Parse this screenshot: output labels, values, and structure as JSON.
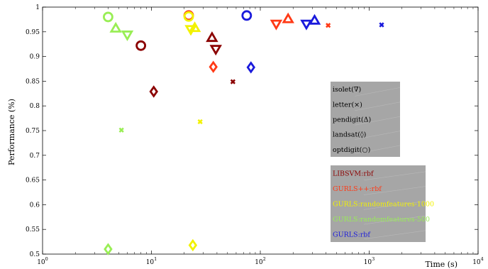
{
  "chart_data": {
    "type": "scatter",
    "xlabel": "Time (s)",
    "ylabel": "Performance (%)",
    "xscale": "log",
    "xlim": [
      1,
      10000
    ],
    "ylim": [
      0.5,
      1
    ],
    "x_ticks": [
      {
        "value": 1,
        "base": "10",
        "exp": "0"
      },
      {
        "value": 10,
        "base": "10",
        "exp": "1"
      },
      {
        "value": 100,
        "base": "10",
        "exp": "2"
      },
      {
        "value": 1000,
        "base": "10",
        "exp": "3"
      },
      {
        "value": 10000,
        "base": "10",
        "exp": "4"
      }
    ],
    "y_ticks": [
      {
        "value": 0.5,
        "label": "0.5"
      },
      {
        "value": 0.55,
        "label": "0.55"
      },
      {
        "value": 0.6,
        "label": "0.6"
      },
      {
        "value": 0.65,
        "label": "0.65"
      },
      {
        "value": 0.7,
        "label": "0.7"
      },
      {
        "value": 0.75,
        "label": "0.75"
      },
      {
        "value": 0.8,
        "label": "0.8"
      },
      {
        "value": 0.85,
        "label": "0.85"
      },
      {
        "value": 0.9,
        "label": "0.9"
      },
      {
        "value": 0.95,
        "label": "0.95"
      },
      {
        "value": 1,
        "label": "1"
      }
    ],
    "grid": false,
    "legend_markers": {
      "placement": "right",
      "entries": [
        {
          "label": "isolet(∇)",
          "marker": "triangle-down"
        },
        {
          "label": "letter(×)",
          "marker": "x"
        },
        {
          "label": "pendigit(Δ)",
          "marker": "triangle-up"
        },
        {
          "label": "landsat(◊)",
          "marker": "diamond"
        },
        {
          "label": "optdigit(○)",
          "marker": "circle"
        }
      ]
    },
    "legend_methods": {
      "placement": "right",
      "entries": [
        {
          "label": "LIBSVM:rbf",
          "color": "#8b0000"
        },
        {
          "label": "GURLS++:rbf",
          "color": "#ff3a16"
        },
        {
          "label": "GURLS:randomfeatures-1000",
          "color": "#f2f200"
        },
        {
          "label": "GURLS:randomfeatures-500",
          "color": "#99ee55"
        },
        {
          "label": "GURLS:rbf",
          "color": "#1a1adc"
        }
      ]
    },
    "series": [
      {
        "method": "LIBSVM:rbf",
        "color": "#8b0000",
        "points": [
          {
            "dataset": "isolet",
            "marker": "triangle-down",
            "x": 39,
            "y": 0.915
          },
          {
            "dataset": "letter",
            "marker": "x",
            "x": 56,
            "y": 0.849
          },
          {
            "dataset": "pendigit",
            "marker": "triangle-up",
            "x": 36,
            "y": 0.938
          },
          {
            "dataset": "landsat",
            "marker": "diamond",
            "x": 10.5,
            "y": 0.829
          },
          {
            "dataset": "optdigit",
            "marker": "circle",
            "x": 8,
            "y": 0.922
          }
        ]
      },
      {
        "method": "GURLS++:rbf",
        "color": "#ff3a16",
        "points": [
          {
            "dataset": "isolet",
            "marker": "triangle-down",
            "x": 140,
            "y": 0.966
          },
          {
            "dataset": "letter",
            "marker": "x",
            "x": 420,
            "y": 0.963
          },
          {
            "dataset": "pendigit",
            "marker": "triangle-up",
            "x": 180,
            "y": 0.976
          },
          {
            "dataset": "landsat",
            "marker": "diamond",
            "x": 37,
            "y": 0.879
          },
          {
            "dataset": "optdigit",
            "marker": "circle",
            "x": 22,
            "y": 0.983
          }
        ]
      },
      {
        "method": "GURLS:randomfeatures-1000",
        "color": "#f2f200",
        "points": [
          {
            "dataset": "isolet",
            "marker": "triangle-down",
            "x": 23,
            "y": 0.955
          },
          {
            "dataset": "letter",
            "marker": "x",
            "x": 28,
            "y": 0.768
          },
          {
            "dataset": "pendigit",
            "marker": "triangle-up",
            "x": 25,
            "y": 0.958
          },
          {
            "dataset": "landsat",
            "marker": "diamond",
            "x": 24,
            "y": 0.518
          },
          {
            "dataset": "optdigit",
            "marker": "circle",
            "x": 22,
            "y": 0.981
          }
        ]
      },
      {
        "method": "GURLS:randomfeatures-500",
        "color": "#99ee55",
        "points": [
          {
            "dataset": "isolet",
            "marker": "triangle-down",
            "x": 6,
            "y": 0.944
          },
          {
            "dataset": "letter",
            "marker": "x",
            "x": 5.3,
            "y": 0.751
          },
          {
            "dataset": "pendigit",
            "marker": "triangle-up",
            "x": 4.7,
            "y": 0.957
          },
          {
            "dataset": "landsat",
            "marker": "diamond",
            "x": 4,
            "y": 0.51
          },
          {
            "dataset": "optdigit",
            "marker": "circle",
            "x": 4,
            "y": 0.98
          }
        ]
      },
      {
        "method": "GURLS:rbf",
        "color": "#1a1adc",
        "points": [
          {
            "dataset": "isolet",
            "marker": "triangle-down",
            "x": 265,
            "y": 0.966
          },
          {
            "dataset": "letter",
            "marker": "x",
            "x": 1300,
            "y": 0.964
          },
          {
            "dataset": "pendigit",
            "marker": "triangle-up",
            "x": 315,
            "y": 0.973
          },
          {
            "dataset": "landsat",
            "marker": "diamond",
            "x": 82,
            "y": 0.878
          },
          {
            "dataset": "optdigit",
            "marker": "circle",
            "x": 75,
            "y": 0.983
          }
        ]
      }
    ]
  }
}
